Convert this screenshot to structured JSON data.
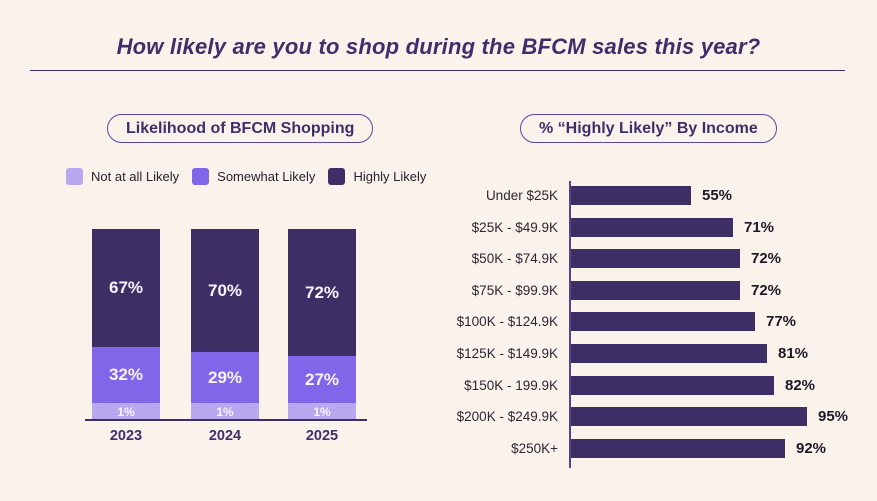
{
  "page": {
    "title": "How likely are you to shop during the BFCM sales this year?"
  },
  "colors": {
    "background": "#faf3eb",
    "dark_purple": "#3d2f66",
    "medium_purple": "#8266e9",
    "light_purple": "#b7a8ef",
    "heading_purple": "#3e2f6b",
    "value_text": "#1c1926"
  },
  "chart_data": [
    {
      "type": "bar",
      "orientation": "vertical-stacked",
      "title": "Likelihood of BFCM Shopping",
      "categories": [
        "2023",
        "2024",
        "2025"
      ],
      "series": [
        {
          "name": "Not at all Likely",
          "color": "#b7a8ef",
          "values": [
            1,
            1,
            1
          ]
        },
        {
          "name": "Somewhat Likely",
          "color": "#8266e9",
          "values": [
            32,
            29,
            27
          ]
        },
        {
          "name": "Highly Likely",
          "color": "#3d2f66",
          "values": [
            67,
            70,
            72
          ]
        }
      ],
      "value_suffix": "%",
      "ylim": [
        0,
        100
      ],
      "legend_position": "top-left",
      "grid": false
    },
    {
      "type": "bar",
      "orientation": "horizontal",
      "title": "% “Highly Likely” By Income",
      "categories": [
        "Under $25K",
        "$25K - $49.9K",
        "$50K - $74.9K",
        "$75K - $99.9K",
        "$100K - $124.9K",
        "$125K - $149.9K",
        "$150K - 199.9K",
        "$200K - $249.9K",
        "$250K+"
      ],
      "values": [
        55,
        71,
        72,
        72,
        77,
        81,
        82,
        95,
        92
      ],
      "bar_color": "#3d2f66",
      "value_suffix": "%",
      "xlim": [
        0,
        100
      ],
      "value_labels": "end",
      "grid": false
    }
  ]
}
